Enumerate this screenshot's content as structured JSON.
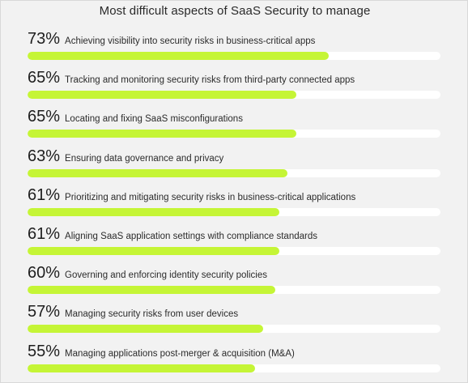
{
  "chart_data": {
    "type": "bar",
    "orientation": "horizontal",
    "title": "Most difficult aspects of SaaS Security to manage",
    "categories": [
      "Achieving visibility into security risks in business-critical apps",
      "Tracking and monitoring security risks from third-party connected apps",
      "Locating and fixing SaaS misconfigurations",
      "Ensuring data governance and privacy",
      "Prioritizing and mitigating security risks in business-critical applications",
      "Aligning SaaS application settings with compliance standards",
      "Governing and enforcing identity security policies",
      "Managing security risks from user devices",
      "Managing applications post-merger & acquisition (M&A)"
    ],
    "values": [
      73,
      65,
      65,
      63,
      61,
      61,
      60,
      57,
      55
    ],
    "value_labels": [
      "73%",
      "65%",
      "65%",
      "63%",
      "61%",
      "61%",
      "60%",
      "57%",
      "55%"
    ],
    "unit": "%",
    "xlim": [
      0,
      100
    ],
    "grid": false,
    "legend": "none",
    "colors": {
      "bar_fill": "#c5f536",
      "track": "#ffffff",
      "background": "#f2f2f2"
    }
  }
}
